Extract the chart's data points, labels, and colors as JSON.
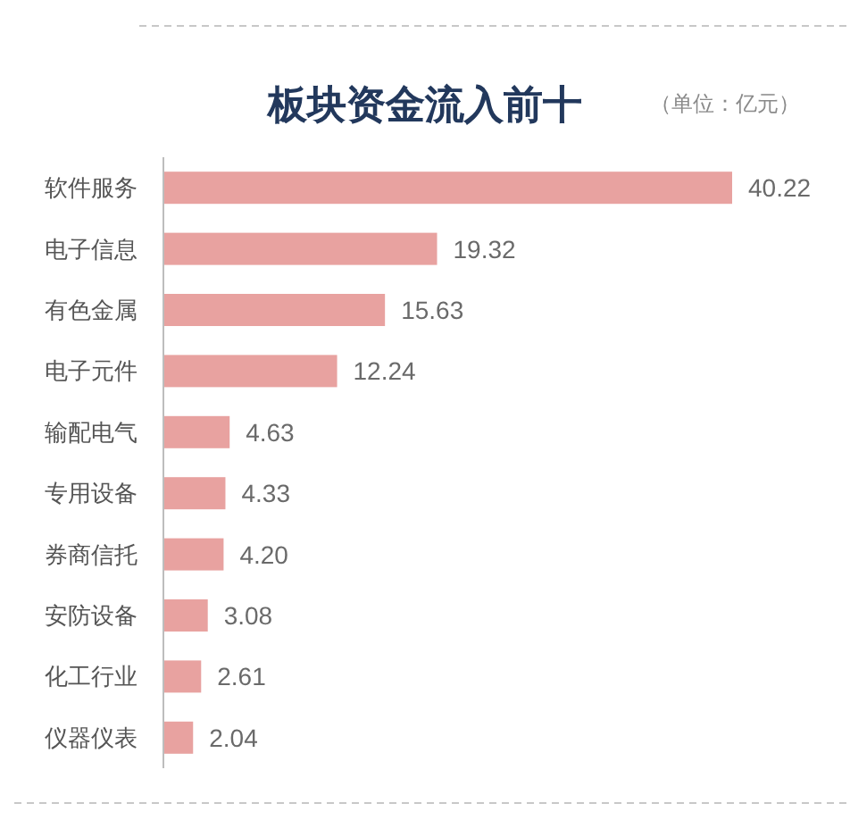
{
  "chart_data": {
    "type": "bar",
    "orientation": "horizontal",
    "title": "板块资金流入前十",
    "subtitle": "（单位：亿元）",
    "categories": [
      "软件服务",
      "电子信息",
      "有色金属",
      "电子元件",
      "输配电气",
      "专用设备",
      "券商信托",
      "安防设备",
      "化工行业",
      "仪器仪表"
    ],
    "values": [
      40.22,
      19.32,
      15.63,
      12.24,
      4.63,
      4.33,
      4.2,
      3.08,
      2.61,
      2.04
    ],
    "value_labels": [
      "40.22",
      "19.32",
      "15.63",
      "12.24",
      "4.63",
      "4.33",
      "4.20",
      "3.08",
      "2.61",
      "2.04"
    ],
    "color": "#e8a2a0"
  }
}
